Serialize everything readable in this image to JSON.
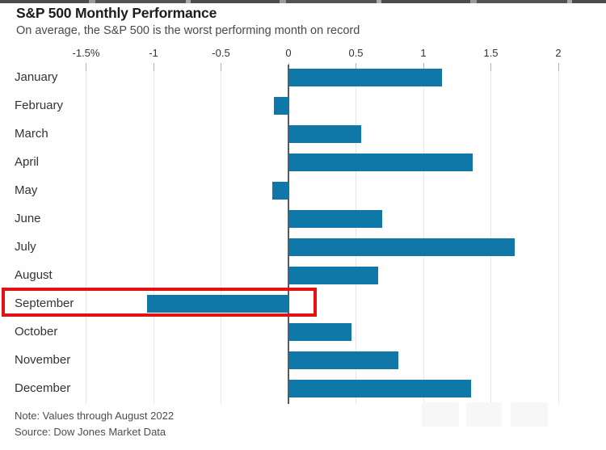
{
  "header": {
    "title": "S&P 500 Monthly Performance",
    "subtitle": "On average, the S&P 500 is the worst performing month on record"
  },
  "chart_data": {
    "type": "bar",
    "orientation": "horizontal",
    "title": "S&P 500 Monthly Performance",
    "subtitle": "On average, the S&P 500 is the worst performing month on record",
    "categories": [
      "January",
      "February",
      "March",
      "April",
      "May",
      "June",
      "July",
      "August",
      "September",
      "October",
      "November",
      "December"
    ],
    "values": [
      1.13,
      -0.11,
      0.53,
      1.36,
      -0.12,
      0.69,
      1.67,
      0.66,
      -1.05,
      0.46,
      0.81,
      1.35
    ],
    "unit": "%",
    "xlim": [
      -1.5,
      2
    ],
    "x_ticks": [
      {
        "label": "-1.5%",
        "value": -1.5
      },
      {
        "label": "-1",
        "value": -1
      },
      {
        "label": "-0.5",
        "value": -0.5
      },
      {
        "label": "0",
        "value": 0
      },
      {
        "label": "0.5",
        "value": 0.5
      },
      {
        "label": "1",
        "value": 1
      },
      {
        "label": "1.5",
        "value": 1.5
      },
      {
        "label": "2",
        "value": 2
      }
    ],
    "grid": true,
    "legend": "none",
    "bar_color": "#0f78a8",
    "highlight": {
      "category": "September",
      "style": "red-outline-box",
      "color": "#e31313"
    }
  },
  "footer": {
    "note": "Note: Values through August 2022",
    "source": "Source: Dow Jones Market Data"
  }
}
